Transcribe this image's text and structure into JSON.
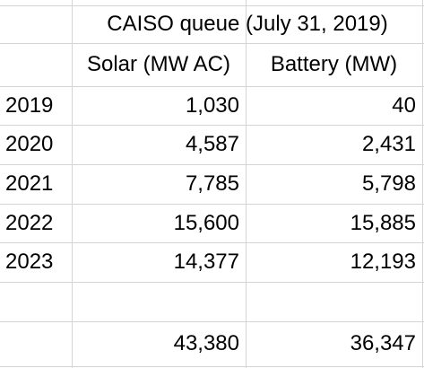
{
  "sheet": {
    "title": "CAISO queue (July 31, 2019)",
    "headers": [
      "Solar (MW AC)",
      "Battery (MW)"
    ],
    "rows": [
      {
        "year": "2019",
        "solar": "1,030",
        "battery": "40"
      },
      {
        "year": "2020",
        "solar": "4,587",
        "battery": "2,431"
      },
      {
        "year": "2021",
        "solar": "7,785",
        "battery": "5,798"
      },
      {
        "year": "2022",
        "solar": "15,600",
        "battery": "15,885"
      },
      {
        "year": "2023",
        "solar": "14,377",
        "battery": "12,193"
      }
    ],
    "blank_row": {
      "year": "",
      "solar": "",
      "battery": ""
    },
    "totals": {
      "label": "",
      "solar": "43,380",
      "battery": "36,347"
    }
  }
}
